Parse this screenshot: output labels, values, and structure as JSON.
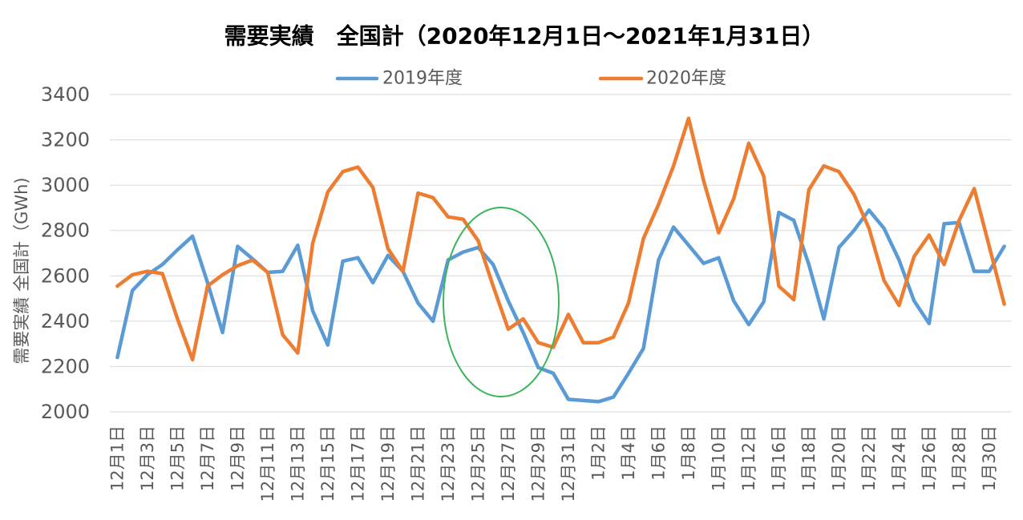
{
  "chart_data": {
    "type": "line",
    "title": "需要実績　全国計（2020年12月1日～2021年1月31日）",
    "xlabel": "",
    "ylabel": "需要実績 全国計（GWh)",
    "ylim": [
      2000,
      3400
    ],
    "yticks": [
      2000,
      2200,
      2400,
      2600,
      2800,
      3000,
      3200,
      3400
    ],
    "grid": "horizontal",
    "legend_position": "top",
    "x_tick_labels": [
      "12月1日",
      "12月3日",
      "12月5日",
      "12月7日",
      "12月9日",
      "12月11日",
      "12月13日",
      "12月15日",
      "12月17日",
      "12月19日",
      "12月21日",
      "12月23日",
      "12月25日",
      "12月27日",
      "12月29日",
      "12月31日",
      "1月2日",
      "1月4日",
      "1月6日",
      "1月8日",
      "1月10日",
      "1月12日",
      "1月16日",
      "1月18日",
      "1月20日",
      "1月22日",
      "1月24日",
      "1月26日",
      "1月28日",
      "1月30日"
    ],
    "series": [
      {
        "name": "2019年度",
        "color": "#5B9BD5",
        "values": [
          2240,
          2535,
          2605,
          2650,
          2715,
          2775,
          2570,
          2350,
          2730,
          2675,
          2615,
          2620,
          2735,
          2445,
          2295,
          2665,
          2680,
          2570,
          2690,
          2620,
          2480,
          2400,
          2670,
          2705,
          2725,
          2650,
          2490,
          2350,
          2195,
          2170,
          2055,
          2050,
          2045,
          2065,
          2170,
          2280,
          2670,
          2815,
          2735,
          2655,
          2680,
          2490,
          2385,
          2485,
          2880,
          2845,
          2650,
          2410,
          2725,
          2800,
          2890,
          2810,
          2670,
          2490,
          2390,
          2830,
          2835,
          2620,
          2620,
          2730
        ]
      },
      {
        "name": "2020年度",
        "color": "#ED7D31",
        "values": [
          2555,
          2605,
          2620,
          2610,
          2410,
          2230,
          2555,
          2605,
          2645,
          2670,
          2615,
          2340,
          2260,
          2745,
          2970,
          3060,
          3080,
          2990,
          2720,
          2620,
          2965,
          2945,
          2860,
          2850,
          2755,
          2555,
          2365,
          2410,
          2305,
          2285,
          2430,
          2305,
          2305,
          2330,
          2480,
          2765,
          2915,
          3085,
          3295,
          3020,
          2790,
          2940,
          3185,
          3040,
          2555,
          2495,
          2980,
          3085,
          3060,
          2960,
          2810,
          2580,
          2470,
          2685,
          2780,
          2650,
          2845,
          2985,
          2730,
          2475
        ]
      }
    ],
    "highlight_color": "#3CB55A"
  }
}
